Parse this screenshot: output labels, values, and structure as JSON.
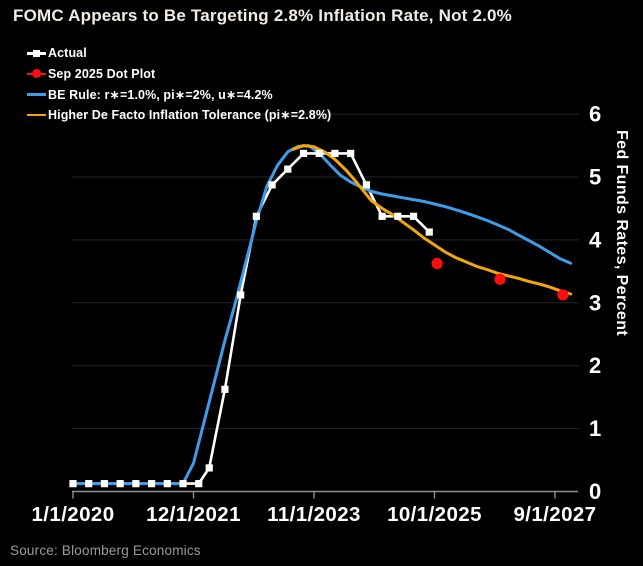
{
  "title": "FOMC Appears to Be Targeting 2.8% Inflation Rate, Not 2.0%",
  "source": "Source: Bloomberg Economics",
  "colors": {
    "background": "#000000",
    "title_text": "#efece4",
    "legend_text": "#ffffff",
    "tick_text": "#ffffff",
    "gridline": "#242424",
    "axis_line": "#8f8f8f",
    "source_text": "#9b9b9b",
    "actual": "#ffffff",
    "dot_plot": "#fe0d0d",
    "be_rule": "#3d9de8",
    "tolerance": "#f2a50c"
  },
  "legend": [
    {
      "label": "Actual",
      "color": "#ffffff",
      "marker": "square-on-line"
    },
    {
      "label": "Sep 2025 Dot Plot",
      "color": "#fe0d0d",
      "marker": "dot-on-line"
    },
    {
      "label": "BE Rule: r∗=1.0%, pi∗=2%, u∗=4.2%",
      "color": "#3d9de8",
      "marker": "line"
    },
    {
      "label": "Higher De Facto Inflation Tolerance (pi∗=2.8%)",
      "color": "#f2a50c",
      "marker": "line"
    }
  ],
  "chart_data": {
    "type": "line",
    "title": "FOMC Appears to Be Targeting 2.8% Inflation Rate, Not 2.0%",
    "x_unit": "months_since_2020_01",
    "ylim": [
      0,
      6
    ],
    "grid": "horizontal",
    "legend_position": "top-left",
    "x_axis": {
      "ticks": [
        {
          "m": 0,
          "label": "1/1/2020"
        },
        {
          "m": 23,
          "label": "12/1/2021"
        },
        {
          "m": 46,
          "label": "11/1/2023"
        },
        {
          "m": 69,
          "label": "10/1/2025"
        },
        {
          "m": 92,
          "label": "9/1/2027"
        }
      ]
    },
    "y_axis": {
      "title": "Fed Funds Rates, Percent",
      "ticks": [
        0,
        1,
        2,
        3,
        4,
        5,
        6
      ]
    },
    "series": [
      {
        "id": "actual",
        "name": "Actual",
        "color": "#ffffff",
        "width": 2.6,
        "marker": "square",
        "points": [
          [
            0,
            0.125
          ],
          [
            3,
            0.125
          ],
          [
            6,
            0.125
          ],
          [
            9,
            0.125
          ],
          [
            12,
            0.125
          ],
          [
            15,
            0.125
          ],
          [
            18,
            0.125
          ],
          [
            21,
            0.125
          ],
          [
            24,
            0.125
          ],
          [
            26,
            0.375
          ],
          [
            29,
            1.625
          ],
          [
            32,
            3.125
          ],
          [
            35,
            4.375
          ],
          [
            38,
            4.875
          ],
          [
            41,
            5.125
          ],
          [
            44,
            5.375
          ],
          [
            47,
            5.375
          ],
          [
            50,
            5.375
          ],
          [
            53,
            5.375
          ],
          [
            56,
            4.875
          ],
          [
            59,
            4.375
          ],
          [
            62,
            4.375
          ],
          [
            65,
            4.375
          ],
          [
            68,
            4.125
          ]
        ]
      },
      {
        "id": "be-rule",
        "name": "BE Rule: r∗=1.0%, pi∗=2%, u∗=4.2%",
        "color": "#3d9de8",
        "width": 3,
        "marker": "none",
        "points": [
          [
            0,
            0.125
          ],
          [
            21,
            0.125
          ],
          [
            23,
            0.45
          ],
          [
            25,
            1.1
          ],
          [
            27,
            1.75
          ],
          [
            29,
            2.4
          ],
          [
            31,
            3.0
          ],
          [
            33,
            3.65
          ],
          [
            35,
            4.3
          ],
          [
            37,
            4.85
          ],
          [
            39,
            5.18
          ],
          [
            41,
            5.4
          ],
          [
            43,
            5.49
          ],
          [
            45,
            5.5
          ],
          [
            47,
            5.38
          ],
          [
            49,
            5.2
          ],
          [
            51,
            5.03
          ],
          [
            53,
            4.92
          ],
          [
            55,
            4.84
          ],
          [
            57,
            4.77
          ],
          [
            59,
            4.73
          ],
          [
            61,
            4.7
          ],
          [
            63,
            4.67
          ],
          [
            65,
            4.64
          ],
          [
            67,
            4.61
          ],
          [
            69,
            4.57
          ],
          [
            71,
            4.53
          ],
          [
            73,
            4.48
          ],
          [
            75,
            4.43
          ],
          [
            77,
            4.37
          ],
          [
            79,
            4.31
          ],
          [
            81,
            4.24
          ],
          [
            83,
            4.17
          ],
          [
            85,
            4.08
          ],
          [
            87,
            3.99
          ],
          [
            89,
            3.9
          ],
          [
            91,
            3.8
          ],
          [
            93,
            3.7
          ],
          [
            95,
            3.63
          ]
        ]
      },
      {
        "id": "tolerance",
        "name": "Higher De Facto Inflation Tolerance (pi∗=2.8%)",
        "color": "#f2a50c",
        "width": 3,
        "marker": "none",
        "points": [
          [
            42,
            5.44
          ],
          [
            44,
            5.5
          ],
          [
            46,
            5.48
          ],
          [
            48,
            5.4
          ],
          [
            50,
            5.28
          ],
          [
            52,
            5.12
          ],
          [
            54,
            4.93
          ],
          [
            56,
            4.72
          ],
          [
            57,
            4.62
          ],
          [
            59,
            4.5
          ],
          [
            61,
            4.4
          ],
          [
            63,
            4.28
          ],
          [
            65,
            4.16
          ],
          [
            67,
            4.03
          ],
          [
            69,
            3.92
          ],
          [
            71,
            3.81
          ],
          [
            73,
            3.72
          ],
          [
            75,
            3.65
          ],
          [
            77,
            3.58
          ],
          [
            79,
            3.53
          ],
          [
            81,
            3.47
          ],
          [
            83,
            3.43
          ],
          [
            85,
            3.39
          ],
          [
            87,
            3.34
          ],
          [
            89,
            3.3
          ],
          [
            91,
            3.25
          ],
          [
            93,
            3.19
          ],
          [
            95,
            3.14
          ]
        ]
      }
    ],
    "scatter_series": [
      {
        "id": "dot-plot",
        "name": "Sep 2025 Dot Plot",
        "color": "#fe0d0d",
        "radius": 5.6,
        "points": [
          [
            69.5,
            3.625
          ],
          [
            81.5,
            3.375
          ],
          [
            93.5,
            3.125
          ]
        ]
      }
    ]
  }
}
